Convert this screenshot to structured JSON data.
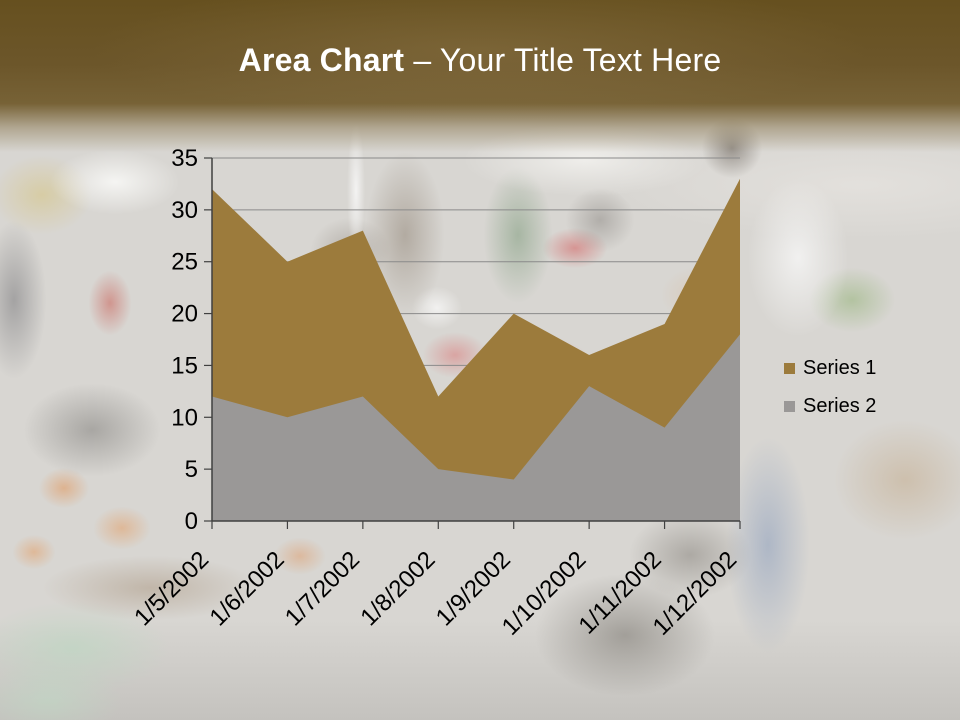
{
  "slide": {
    "title": {
      "bold": "Area Chart",
      "separator": " – ",
      "rest": "Your Title Text Here",
      "full": "Area Chart – Your Title Text Here"
    }
  },
  "colors": {
    "banner_brown": "#66501f",
    "title_text": "#ffffff",
    "series1": "#9C7B3C",
    "series2": "#9A9897",
    "axis_line": "#404040",
    "gridline": "#8a8a8a",
    "label_text": "#000000"
  },
  "chart_data": {
    "type": "area",
    "categories": [
      "1/5/2002",
      "1/6/2002",
      "1/7/2002",
      "1/8/2002",
      "1/9/2002",
      "1/10/2002",
      "1/11/2002",
      "1/12/2002"
    ],
    "series": [
      {
        "name": "Series 1",
        "color": "#9C7B3C",
        "values": [
          32,
          25,
          28,
          12,
          20,
          16,
          19,
          33
        ]
      },
      {
        "name": "Series 2",
        "color": "#9A9897",
        "values": [
          12,
          10,
          12,
          5,
          4,
          13,
          9,
          18
        ]
      }
    ],
    "ylim": [
      0,
      35
    ],
    "ytick_step": 5,
    "ytick_labels": [
      "0",
      "5",
      "10",
      "15",
      "20",
      "25",
      "30",
      "35"
    ],
    "grid": true,
    "legend_position": "right",
    "x_label_rotation_deg": -45
  }
}
